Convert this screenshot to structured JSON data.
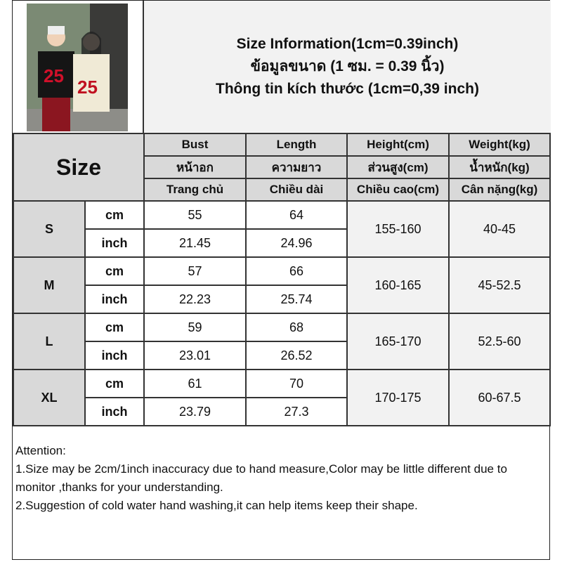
{
  "title": {
    "line1": "Size Information(1cm=0.39inch)",
    "line2": "ข้อมูลขนาด (1 ซม. = 0.39 นิ้ว)",
    "line3": "Thông tin kích thước (1cm=0,39 inch)"
  },
  "header": {
    "size": "Size",
    "columns": [
      {
        "en": "Bust",
        "th": "หน้าอก",
        "vi": "Trang chủ"
      },
      {
        "en": "Length",
        "th": "ความยาว",
        "vi": "Chiều dài"
      },
      {
        "en": "Height(cm)",
        "th": "ส่วนสูง(cm)",
        "vi": "Chiều cao(cm)"
      },
      {
        "en": "Weight(kg)",
        "th": "น้ำหนัก(kg)",
        "vi": "Cân nặng(kg)"
      }
    ]
  },
  "units": {
    "cm": "cm",
    "inch": "inch"
  },
  "rows": [
    {
      "size": "S",
      "cm": [
        "55",
        "64"
      ],
      "inch": [
        "21.45",
        "24.96"
      ],
      "height": "155-160",
      "weight": "40-45"
    },
    {
      "size": "M",
      "cm": [
        "57",
        "66"
      ],
      "inch": [
        "22.23",
        "25.74"
      ],
      "height": "160-165",
      "weight": "45-52.5"
    },
    {
      "size": "L",
      "cm": [
        "59",
        "68"
      ],
      "inch": [
        "23.01",
        "26.52"
      ],
      "height": "165-170",
      "weight": "52.5-60"
    },
    {
      "size": "XL",
      "cm": [
        "61",
        "70"
      ],
      "inch": [
        "23.79",
        "27.3"
      ],
      "height": "170-175",
      "weight": "60-67.5"
    }
  ],
  "footer": {
    "heading": "Attention:",
    "note1": "1.Size may be 2cm/1inch inaccuracy due to hand measure,Color may be little different due to monitor ,thanks for your understanding.",
    "note2": "2.Suggestion of cold water hand washing,it can help items keep their shape."
  }
}
